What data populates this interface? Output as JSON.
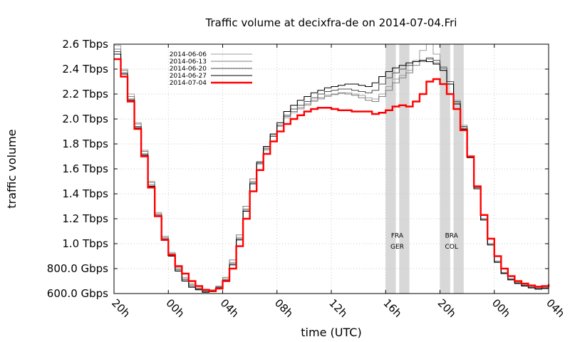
{
  "chart_data": {
    "type": "line",
    "title": "Traffic volume at decixfra-de on 2014-07-04.Fri",
    "xlabel": "time (UTC)",
    "ylabel": "traffic volume",
    "xlim": [
      0,
      32
    ],
    "ylim": [
      600,
      2600
    ],
    "x_ticks": [
      {
        "x": 0,
        "label": "20h"
      },
      {
        "x": 4,
        "label": "00h"
      },
      {
        "x": 8,
        "label": "04h"
      },
      {
        "x": 12,
        "label": "08h"
      },
      {
        "x": 16,
        "label": "12h"
      },
      {
        "x": 20,
        "label": "16h"
      },
      {
        "x": 24,
        "label": "20h"
      },
      {
        "x": 28,
        "label": "00h"
      },
      {
        "x": 32,
        "label": "04h"
      }
    ],
    "y_ticks": [
      {
        "y": 600,
        "label": "600.0 Gbps"
      },
      {
        "y": 800,
        "label": "800.0 Gbps"
      },
      {
        "y": 1000,
        "label": "1.0 Tbps"
      },
      {
        "y": 1200,
        "label": "1.2 Tbps"
      },
      {
        "y": 1400,
        "label": "1.4 Tbps"
      },
      {
        "y": 1600,
        "label": "1.6 Tbps"
      },
      {
        "y": 1800,
        "label": "1.8 Tbps"
      },
      {
        "y": 2000,
        "label": "2.0 Tbps"
      },
      {
        "y": 2200,
        "label": "2.2 Tbps"
      },
      {
        "y": 2400,
        "label": "2.4 Tbps"
      },
      {
        "y": 2600,
        "label": "2.6 Tbps"
      }
    ],
    "grid": true,
    "legend_position": "top-left",
    "shaded_periods": [
      {
        "start": 20.0,
        "end": 20.75
      },
      {
        "start": 21.0,
        "end": 21.75
      },
      {
        "start": 24.0,
        "end": 24.75
      },
      {
        "start": 25.0,
        "end": 25.75
      }
    ],
    "annotations": [
      {
        "x": 20.85,
        "y": 1050,
        "text": "FRA"
      },
      {
        "x": 20.85,
        "y": 960,
        "text": "GER"
      },
      {
        "x": 24.85,
        "y": 1050,
        "text": "BRA"
      },
      {
        "x": 24.85,
        "y": 960,
        "text": "COL"
      }
    ],
    "series": [
      {
        "name": "2014-06-06",
        "color": "#a0a0a0",
        "x": [
          0,
          0.5,
          1,
          1.5,
          2,
          2.5,
          3,
          3.5,
          4,
          4.5,
          5,
          5.5,
          6,
          6.5,
          7,
          7.5,
          8,
          8.5,
          9,
          9.5,
          10,
          10.5,
          11,
          11.5,
          12,
          12.5,
          13,
          13.5,
          14,
          14.5,
          15,
          15.5,
          16,
          16.5,
          17,
          17.5,
          18,
          18.5,
          19,
          19.5,
          20,
          20.5,
          21,
          21.5,
          22,
          22.5,
          23,
          23.5,
          24,
          24.5,
          25,
          25.5,
          26,
          26.5,
          27,
          27.5,
          28,
          28.5,
          29,
          29.5,
          30,
          30.5,
          31,
          31.5,
          32
        ],
        "values": [
          2590,
          2400,
          2200,
          1970,
          1750,
          1500,
          1250,
          1060,
          930,
          810,
          730,
          680,
          645,
          620,
          625,
          655,
          720,
          850,
          1050,
          1280,
          1500,
          1640,
          1750,
          1860,
          1940,
          2010,
          2050,
          2080,
          2110,
          2140,
          2160,
          2180,
          2195,
          2205,
          2210,
          2200,
          2190,
          2170,
          2160,
          2200,
          2260,
          2320,
          2350,
          2390,
          2470,
          2550,
          2600,
          2520,
          2420,
          2300,
          2150,
          1950,
          1700,
          1450,
          1200,
          1000,
          860,
          770,
          720,
          690,
          670,
          655,
          645,
          650,
          665
        ]
      },
      {
        "name": "2014-06-13",
        "color": "#808080",
        "x": [
          0,
          0.5,
          1,
          1.5,
          2,
          2.5,
          3,
          3.5,
          4,
          4.5,
          5,
          5.5,
          6,
          6.5,
          7,
          7.5,
          8,
          8.5,
          9,
          9.5,
          10,
          10.5,
          11,
          11.5,
          12,
          12.5,
          13,
          13.5,
          14,
          14.5,
          15,
          15.5,
          16,
          16.5,
          17,
          17.5,
          18,
          18.5,
          19,
          19.5,
          20,
          20.5,
          21,
          21.5,
          22,
          22.5,
          23,
          23.5,
          24,
          24.5,
          25,
          25.5,
          26,
          26.5,
          27,
          27.5,
          28,
          28.5,
          29,
          29.5,
          30,
          30.5,
          31,
          31.5,
          32
        ],
        "values": [
          2560,
          2390,
          2180,
          1960,
          1740,
          1490,
          1240,
          1050,
          920,
          800,
          720,
          670,
          640,
          625,
          630,
          660,
          730,
          870,
          1070,
          1300,
          1520,
          1660,
          1770,
          1870,
          1950,
          2020,
          2060,
          2090,
          2120,
          2150,
          2170,
          2190,
          2200,
          2210,
          2200,
          2190,
          2170,
          2150,
          2140,
          2180,
          2230,
          2290,
          2330,
          2370,
          2430,
          2460,
          2480,
          2450,
          2390,
          2280,
          2130,
          1930,
          1690,
          1440,
          1190,
          990,
          850,
          760,
          710,
          680,
          665,
          650,
          640,
          645,
          660
        ]
      },
      {
        "name": "2014-06-20",
        "color": "#505050",
        "x": [
          0,
          0.5,
          1,
          1.5,
          2,
          2.5,
          3,
          3.5,
          4,
          4.5,
          5,
          5.5,
          6,
          6.5,
          7,
          7.5,
          8,
          8.5,
          9,
          9.5,
          10,
          10.5,
          11,
          11.5,
          12,
          12.5,
          13,
          13.5,
          14,
          14.5,
          15,
          15.5,
          16,
          16.5,
          17,
          17.5,
          18,
          18.5,
          19,
          19.5,
          20,
          20.5,
          21,
          21.5,
          22,
          22.5,
          23,
          23.5,
          24,
          24.5,
          25,
          25.5,
          26,
          26.5,
          27,
          27.5,
          28,
          28.5,
          29,
          29.5,
          30,
          30.5,
          31,
          31.5,
          32
        ],
        "values": [
          2540,
          2370,
          2160,
          1940,
          1720,
          1470,
          1230,
          1040,
          910,
          790,
          710,
          660,
          635,
          615,
          620,
          650,
          710,
          840,
          1040,
          1270,
          1490,
          1640,
          1760,
          1860,
          1950,
          2030,
          2080,
          2110,
          2140,
          2170,
          2200,
          2220,
          2230,
          2240,
          2240,
          2230,
          2220,
          2210,
          2230,
          2280,
          2330,
          2370,
          2400,
          2430,
          2460,
          2470,
          2490,
          2470,
          2410,
          2300,
          2140,
          1940,
          1700,
          1450,
          1200,
          1000,
          860,
          765,
          715,
          685,
          665,
          650,
          640,
          645,
          660
        ]
      },
      {
        "name": "2014-06-27",
        "color": "#000000",
        "x": [
          0,
          0.5,
          1,
          1.5,
          2,
          2.5,
          3,
          3.5,
          4,
          4.5,
          5,
          5.5,
          6,
          6.5,
          7,
          7.5,
          8,
          8.5,
          9,
          9.5,
          10,
          10.5,
          11,
          11.5,
          12,
          12.5,
          13,
          13.5,
          14,
          14.5,
          15,
          15.5,
          16,
          16.5,
          17,
          17.5,
          18,
          18.5,
          19,
          19.5,
          20,
          20.5,
          21,
          21.5,
          22,
          22.5,
          23,
          23.5,
          24,
          24.5,
          25,
          25.5,
          26,
          26.5,
          27,
          27.5,
          28,
          28.5,
          29,
          29.5,
          30,
          30.5,
          31,
          31.5,
          32
        ],
        "values": [
          2520,
          2360,
          2150,
          1930,
          1710,
          1460,
          1220,
          1030,
          900,
          780,
          700,
          650,
          630,
          610,
          615,
          645,
          705,
          830,
          1030,
          1260,
          1480,
          1650,
          1780,
          1880,
          1970,
          2060,
          2110,
          2150,
          2180,
          2210,
          2230,
          2250,
          2260,
          2270,
          2280,
          2280,
          2270,
          2260,
          2290,
          2340,
          2380,
          2410,
          2430,
          2450,
          2460,
          2470,
          2460,
          2440,
          2390,
          2280,
          2120,
          1920,
          1690,
          1440,
          1190,
          990,
          850,
          760,
          710,
          680,
          660,
          645,
          635,
          640,
          655
        ]
      },
      {
        "name": "2014-07-04",
        "color": "#ff0000",
        "x": [
          0,
          0.5,
          1,
          1.5,
          2,
          2.5,
          3,
          3.5,
          4,
          4.5,
          5,
          5.5,
          6,
          6.5,
          7,
          7.5,
          8,
          8.5,
          9,
          9.5,
          10,
          10.5,
          11,
          11.5,
          12,
          12.5,
          13,
          13.5,
          14,
          14.5,
          15,
          15.5,
          16,
          16.5,
          17,
          17.5,
          18,
          18.5,
          19,
          19.5,
          20,
          20.5,
          21,
          21.5,
          22,
          22.5,
          23,
          23.5,
          24,
          24.5,
          25,
          25.5,
          26,
          26.5,
          27,
          27.5,
          28,
          28.5,
          29,
          29.5,
          30,
          30.5,
          31,
          31.5,
          32
        ],
        "values": [
          2480,
          2340,
          2140,
          1920,
          1700,
          1450,
          1220,
          1030,
          910,
          820,
          760,
          700,
          660,
          630,
          620,
          640,
          700,
          800,
          980,
          1200,
          1420,
          1590,
          1720,
          1820,
          1900,
          1960,
          2000,
          2030,
          2060,
          2080,
          2090,
          2090,
          2080,
          2070,
          2070,
          2060,
          2060,
          2060,
          2040,
          2050,
          2070,
          2100,
          2110,
          2100,
          2140,
          2200,
          2300,
          2320,
          2280,
          2200,
          2080,
          1910,
          1700,
          1460,
          1230,
          1040,
          900,
          800,
          740,
          700,
          680,
          665,
          655,
          660,
          675
        ]
      }
    ]
  }
}
